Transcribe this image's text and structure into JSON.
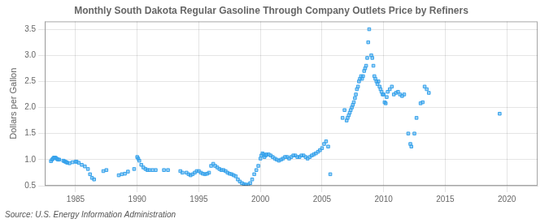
{
  "chart_data": {
    "type": "scatter",
    "title": "Monthly South Dakota Regular Gasoline Through Company Outlets Price by Refiners",
    "y_label": "Dollars per Gallon",
    "annotations": [
      "Source: U.S. Energy Information Administration"
    ],
    "marker": "square",
    "grid": true,
    "xlim": [
      1982.5,
      2022.5
    ],
    "ylim": [
      0.5,
      3.65
    ],
    "xticks": [
      1985,
      1990,
      1995,
      2000,
      2005,
      2010,
      2015,
      2020
    ],
    "yticks": [
      0.5,
      {
        "value": 1.0,
        "label": "1.0"
      },
      1.5,
      {
        "value": 2.0,
        "label": "2.0"
      },
      2.5,
      {
        "value": 3.0,
        "label": "3.0"
      },
      3.5
    ],
    "x": [
      1983.0,
      1983.08,
      1983.17,
      1983.25,
      1983.33,
      1983.42,
      1983.5,
      1983.58,
      1983.67,
      1984.0,
      1984.08,
      1984.17,
      1984.25,
      1984.33,
      1984.5,
      1984.75,
      1985.0,
      1985.08,
      1985.25,
      1985.5,
      1985.75,
      1986.0,
      1986.17,
      1986.33,
      1986.5,
      1987.25,
      1987.5,
      1988.5,
      1988.75,
      1989.0,
      1989.25,
      1989.75,
      1990.0,
      1990.08,
      1990.17,
      1990.33,
      1990.5,
      1990.67,
      1990.83,
      1991.0,
      1991.25,
      1991.5,
      1992.17,
      1992.5,
      1993.5,
      1993.67,
      1994.0,
      1994.17,
      1994.33,
      1994.5,
      1994.67,
      1994.83,
      1995.0,
      1995.17,
      1995.33,
      1995.5,
      1995.67,
      1995.83,
      1996.0,
      1996.17,
      1996.33,
      1996.5,
      1996.67,
      1996.83,
      1997.0,
      1997.17,
      1997.33,
      1997.5,
      1997.67,
      1997.83,
      1998.0,
      1998.17,
      1998.33,
      1998.5,
      1998.67,
      1998.83,
      1999.0,
      1999.17,
      1999.33,
      1999.5,
      1999.67,
      1999.83,
      2000.0,
      2000.08,
      2000.17,
      2000.25,
      2000.33,
      2000.42,
      2000.5,
      2000.67,
      2000.83,
      2001.0,
      2001.17,
      2001.33,
      2001.5,
      2001.67,
      2001.83,
      2002.0,
      2002.17,
      2002.33,
      2002.5,
      2002.67,
      2002.83,
      2003.0,
      2003.17,
      2003.33,
      2003.5,
      2003.67,
      2003.83,
      2004.0,
      2004.17,
      2004.33,
      2004.5,
      2004.67,
      2004.83,
      2005.0,
      2005.17,
      2005.33,
      2005.5,
      2005.67,
      2006.67,
      2006.83,
      2007.0,
      2007.08,
      2007.17,
      2007.25,
      2007.33,
      2007.42,
      2007.5,
      2007.58,
      2007.67,
      2007.75,
      2007.83,
      2007.92,
      2008.0,
      2008.08,
      2008.17,
      2008.25,
      2008.33,
      2008.42,
      2008.5,
      2008.58,
      2008.67,
      2008.75,
      2008.83,
      2009.0,
      2009.08,
      2009.17,
      2009.25,
      2009.33,
      2009.42,
      2009.5,
      2009.58,
      2009.67,
      2009.75,
      2009.83,
      2009.92,
      2010.0,
      2010.08,
      2010.17,
      2010.25,
      2010.33,
      2010.5,
      2010.67,
      2010.83,
      2011.0,
      2011.17,
      2011.33,
      2011.5,
      2011.67,
      2012.0,
      2012.17,
      2012.25,
      2012.5,
      2012.67,
      2013.0,
      2013.17,
      2013.33,
      2013.5,
      2013.67,
      2019.42
    ],
    "values": [
      0.97,
      1.0,
      1.02,
      1.04,
      1.04,
      1.03,
      1.01,
      1.0,
      1.0,
      0.98,
      0.97,
      0.96,
      0.95,
      0.94,
      0.93,
      0.95,
      0.96,
      0.96,
      0.94,
      0.9,
      0.87,
      0.82,
      0.72,
      0.65,
      0.62,
      0.78,
      0.8,
      0.7,
      0.72,
      0.73,
      0.77,
      0.82,
      1.05,
      1.02,
      0.98,
      0.9,
      0.85,
      0.82,
      0.8,
      0.8,
      0.8,
      0.8,
      0.8,
      0.8,
      0.78,
      0.75,
      0.75,
      0.72,
      0.7,
      0.72,
      0.75,
      0.78,
      0.78,
      0.75,
      0.73,
      0.72,
      0.73,
      0.75,
      0.88,
      0.92,
      0.88,
      0.85,
      0.82,
      0.8,
      0.8,
      0.78,
      0.75,
      0.73,
      0.72,
      0.7,
      0.68,
      0.62,
      0.58,
      0.55,
      0.53,
      0.52,
      0.52,
      0.55,
      0.62,
      0.72,
      0.8,
      0.88,
      1.02,
      1.08,
      1.12,
      1.1,
      1.05,
      1.08,
      1.1,
      1.1,
      1.08,
      1.05,
      1.02,
      1.0,
      0.98,
      1.0,
      1.02,
      1.05,
      1.05,
      1.02,
      1.05,
      1.08,
      1.08,
      1.05,
      1.05,
      1.08,
      1.08,
      1.05,
      1.02,
      1.05,
      1.08,
      1.1,
      1.12,
      1.15,
      1.18,
      1.22,
      1.3,
      1.35,
      1.25,
      0.72,
      1.8,
      1.95,
      1.75,
      1.8,
      1.85,
      1.9,
      1.95,
      2.0,
      2.05,
      2.1,
      2.18,
      2.25,
      2.35,
      2.4,
      2.5,
      2.55,
      2.6,
      2.55,
      2.6,
      2.7,
      2.75,
      2.8,
      2.95,
      3.25,
      3.5,
      3.0,
      2.95,
      2.8,
      2.6,
      2.55,
      2.5,
      2.45,
      2.5,
      2.4,
      2.35,
      2.3,
      2.25,
      2.25,
      2.1,
      2.08,
      2.2,
      2.3,
      2.35,
      2.4,
      2.25,
      2.28,
      2.3,
      2.25,
      2.22,
      2.25,
      1.5,
      1.3,
      1.25,
      1.5,
      1.8,
      2.08,
      2.1,
      2.4,
      2.35,
      2.28,
      1.88
    ]
  }
}
